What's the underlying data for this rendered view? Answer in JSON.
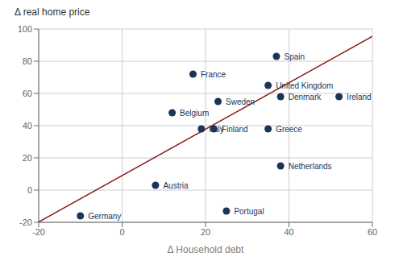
{
  "chart_data": {
    "type": "scatter",
    "xlabel": "Δ Household debt",
    "ylabel": "Δ real home price",
    "xlim": [
      -20,
      60
    ],
    "ylim": [
      -20,
      100
    ],
    "xticks": [
      -20,
      0,
      20,
      40,
      60
    ],
    "yticks": [
      -20,
      0,
      20,
      40,
      60,
      80,
      100
    ],
    "grid": true,
    "series": [
      {
        "type": "line",
        "color": "#8b1a1a",
        "x": [
          -20,
          60
        ],
        "values": [
          -19.8,
          95.4
        ]
      },
      {
        "type": "scatter",
        "color": "#1a3558",
        "x": [
          37,
          17,
          35,
          23,
          12,
          38,
          52,
          19,
          22,
          35,
          38,
          8,
          25,
          -10
        ],
        "values": [
          83,
          72,
          65,
          55,
          48,
          58,
          58,
          38,
          38,
          38,
          15,
          3,
          -13,
          -16
        ],
        "labels": [
          "Spain",
          "France",
          "United Kingdom",
          "Sweden",
          "Belgium",
          "Denmark",
          "Ireland",
          "Italy",
          "Finland",
          "Greece",
          "Netherlands",
          "Austria",
          "Portugal",
          "Germany"
        ]
      }
    ]
  }
}
